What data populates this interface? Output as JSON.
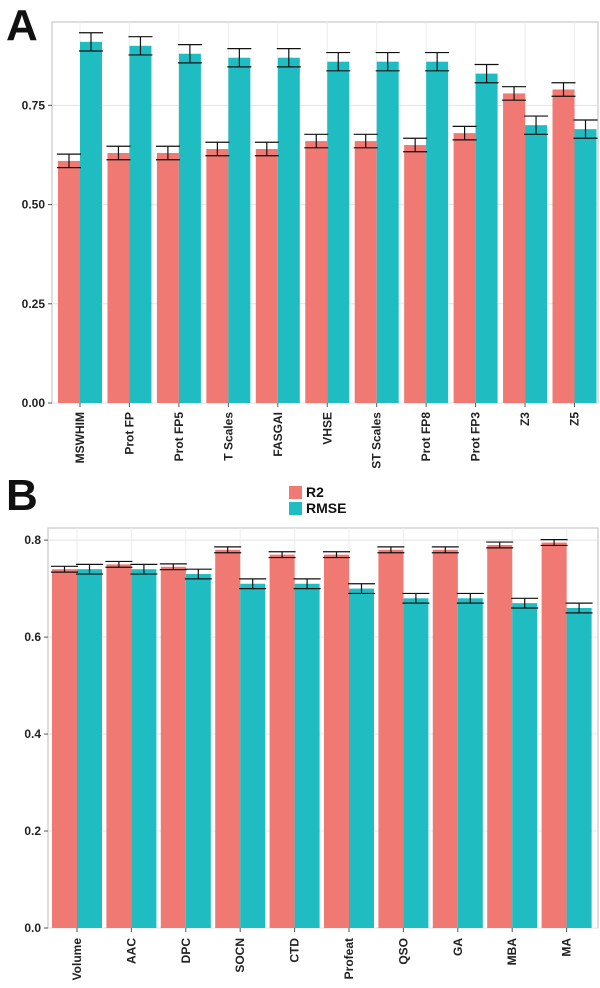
{
  "panels": [
    {
      "letter": "A"
    },
    {
      "letter": "B"
    }
  ],
  "legend": {
    "items": [
      {
        "label": "R2",
        "color": "#F07A73"
      },
      {
        "label": "RMSE",
        "color": "#1FBCC2"
      }
    ]
  },
  "chart_data": [
    {
      "type": "bar",
      "panel": "A",
      "categories": [
        "MSWHIM",
        "Prot FP",
        "Prot FP5",
        "T Scales",
        "FASGAI",
        "VHSE",
        "ST Scales",
        "Prot FP8",
        "Prot FP3",
        "Z3",
        "Z5"
      ],
      "series": [
        {
          "name": "R2",
          "values": [
            0.61,
            0.63,
            0.63,
            0.64,
            0.64,
            0.66,
            0.66,
            0.65,
            0.68,
            0.78,
            0.79
          ],
          "errors": [
            0.017,
            0.017,
            0.017,
            0.017,
            0.017,
            0.017,
            0.017,
            0.017,
            0.017,
            0.017,
            0.017
          ]
        },
        {
          "name": "RMSE",
          "values": [
            0.91,
            0.9,
            0.88,
            0.87,
            0.87,
            0.86,
            0.86,
            0.86,
            0.83,
            0.7,
            0.69
          ],
          "errors": [
            0.023,
            0.023,
            0.023,
            0.023,
            0.023,
            0.023,
            0.023,
            0.023,
            0.023,
            0.023,
            0.023
          ]
        }
      ],
      "yticks": [
        "0.00",
        "0.25",
        "0.50",
        "0.75"
      ],
      "ylim": [
        0,
        0.96
      ],
      "grid": true,
      "legend_position": "bottom"
    },
    {
      "type": "bar",
      "panel": "B",
      "categories": [
        "Volume",
        "AAC",
        "DPC",
        "SOCN",
        "CTD",
        "Profeat",
        "QSO",
        "GA",
        "MBA",
        "MA"
      ],
      "series": [
        {
          "name": "R2",
          "values": [
            0.74,
            0.75,
            0.745,
            0.78,
            0.77,
            0.77,
            0.78,
            0.78,
            0.79,
            0.795
          ],
          "errors": [
            0.006,
            0.006,
            0.006,
            0.006,
            0.006,
            0.006,
            0.006,
            0.006,
            0.006,
            0.006
          ]
        },
        {
          "name": "RMSE",
          "values": [
            0.74,
            0.74,
            0.73,
            0.71,
            0.71,
            0.7,
            0.68,
            0.68,
            0.67,
            0.66
          ],
          "errors": [
            0.01,
            0.01,
            0.01,
            0.01,
            0.01,
            0.01,
            0.01,
            0.01,
            0.01,
            0.01
          ]
        }
      ],
      "yticks": [
        "0.0",
        "0.2",
        "0.4",
        "0.6",
        "0.8"
      ],
      "ylim": [
        0,
        0.825
      ],
      "grid": true,
      "legend_position": "top"
    }
  ]
}
